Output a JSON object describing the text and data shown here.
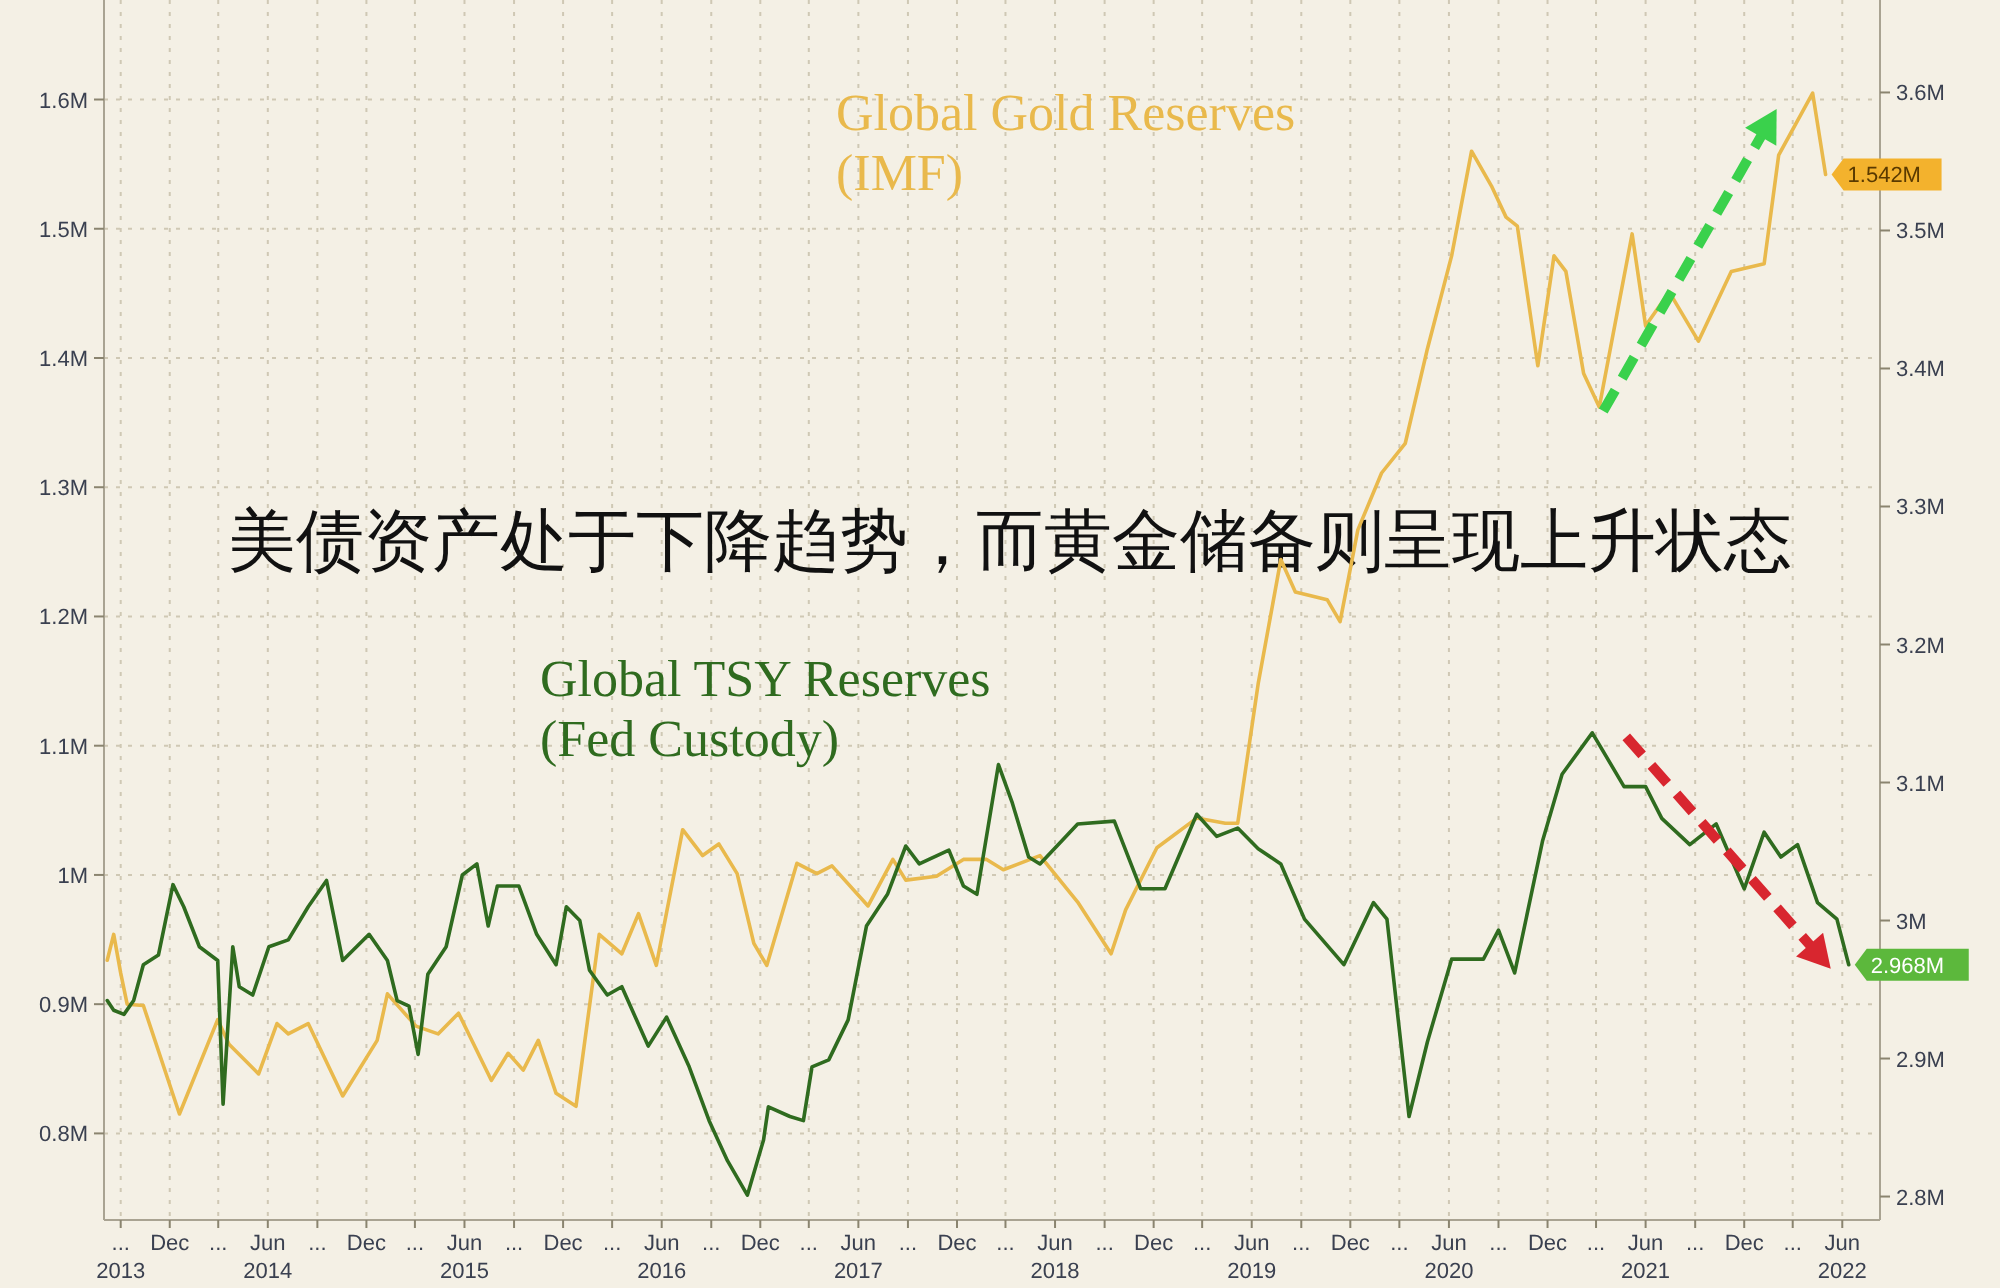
{
  "chart_data": {
    "type": "line",
    "title": "美债资产处于下降趋势，而黄金储备则呈现上升状态",
    "grid": true,
    "xlim": [
      "2013-08-01",
      "2022-08-10"
    ],
    "xticks": [
      {
        "value": "2013-09-01",
        "label": "...\n2013"
      },
      {
        "value": "2013-12-01",
        "label": "Dec"
      },
      {
        "value": "2014-03-01",
        "label": "..."
      },
      {
        "value": "2014-06-01",
        "label": "Jun\n2014"
      },
      {
        "value": "2014-09-01",
        "label": "..."
      },
      {
        "value": "2014-12-01",
        "label": "Dec"
      },
      {
        "value": "2015-03-01",
        "label": "..."
      },
      {
        "value": "2015-06-01",
        "label": "Jun\n2015"
      },
      {
        "value": "2015-09-01",
        "label": "..."
      },
      {
        "value": "2015-12-01",
        "label": "Dec"
      },
      {
        "value": "2016-03-01",
        "label": "..."
      },
      {
        "value": "2016-06-01",
        "label": "Jun\n2016"
      },
      {
        "value": "2016-09-01",
        "label": "..."
      },
      {
        "value": "2016-12-01",
        "label": "Dec"
      },
      {
        "value": "2017-03-01",
        "label": "..."
      },
      {
        "value": "2017-06-01",
        "label": "Jun\n2017"
      },
      {
        "value": "2017-09-01",
        "label": "..."
      },
      {
        "value": "2017-12-01",
        "label": "Dec"
      },
      {
        "value": "2018-03-01",
        "label": "..."
      },
      {
        "value": "2018-06-01",
        "label": "Jun\n2018"
      },
      {
        "value": "2018-09-01",
        "label": "..."
      },
      {
        "value": "2018-12-01",
        "label": "Dec"
      },
      {
        "value": "2019-03-01",
        "label": "..."
      },
      {
        "value": "2019-06-01",
        "label": "Jun\n2019"
      },
      {
        "value": "2019-09-01",
        "label": "..."
      },
      {
        "value": "2019-12-01",
        "label": "Dec"
      },
      {
        "value": "2020-03-01",
        "label": "..."
      },
      {
        "value": "2020-06-01",
        "label": "Jun\n2020"
      },
      {
        "value": "2020-09-01",
        "label": "..."
      },
      {
        "value": "2020-12-01",
        "label": "Dec"
      },
      {
        "value": "2021-03-01",
        "label": "..."
      },
      {
        "value": "2021-06-01",
        "label": "Jun\n2021"
      },
      {
        "value": "2021-09-01",
        "label": "..."
      },
      {
        "value": "2021-12-01",
        "label": "Dec"
      },
      {
        "value": "2022-03-01",
        "label": "..."
      },
      {
        "value": "2022-06-01",
        "label": "Jun\n2022"
      }
    ],
    "ylim": [
      0.733,
      1.677
    ],
    "yticks": [
      {
        "value": 0.8,
        "label": "0.8M"
      },
      {
        "value": 0.9,
        "label": "0.9M"
      },
      {
        "value": 1.0,
        "label": "1M"
      },
      {
        "value": 1.1,
        "label": "1.1M"
      },
      {
        "value": 1.2,
        "label": "1.2M"
      },
      {
        "value": 1.3,
        "label": "1.3M"
      },
      {
        "value": 1.4,
        "label": "1.4M"
      },
      {
        "value": 1.5,
        "label": "1.5M"
      },
      {
        "value": 1.6,
        "label": "1.6M"
      }
    ],
    "y2lim": [
      2.783,
      3.667
    ],
    "y2ticks": [
      {
        "value": 2.8,
        "label": "2.8M"
      },
      {
        "value": 2.9,
        "label": "2.9M"
      },
      {
        "value": 3.0,
        "label": "3M"
      },
      {
        "value": 3.1,
        "label": "3.1M"
      },
      {
        "value": 3.2,
        "label": "3.2M"
      },
      {
        "value": 3.3,
        "label": "3.3M"
      },
      {
        "value": 3.4,
        "label": "3.4M"
      },
      {
        "value": 3.5,
        "label": "3.5M"
      },
      {
        "value": 3.6,
        "label": "3.6M"
      }
    ],
    "series": [
      {
        "name": "Global Gold Reserves\n(IMF)",
        "color": "#e9b94c",
        "x": [
          "2013-08-07",
          "2013-08-19",
          "2013-09-01",
          "2013-09-13",
          "2013-10-13",
          "2013-12-19",
          "2014-02-28",
          "2014-03-21",
          "2014-05-15",
          "2014-06-18",
          "2014-07-09",
          "2014-08-15",
          "2014-10-18",
          "2014-12-21",
          "2015-01-09",
          "2015-03-03",
          "2015-04-13",
          "2015-05-21",
          "2015-07-21",
          "2015-08-21",
          "2015-09-18",
          "2015-10-16",
          "2015-11-18",
          "2015-12-25",
          "2016-02-06",
          "2016-03-19",
          "2016-04-19",
          "2016-05-22",
          "2016-07-10",
          "2016-08-16",
          "2016-09-15",
          "2016-10-19",
          "2016-11-19",
          "2016-12-13",
          "2017-02-07",
          "2017-03-16",
          "2017-04-13",
          "2017-06-19",
          "2017-08-04",
          "2017-08-28",
          "2017-10-24",
          "2017-12-13",
          "2018-01-25",
          "2018-02-25",
          "2018-05-04",
          "2018-07-13",
          "2018-09-13",
          "2018-10-10",
          "2018-12-07",
          "2019-02-19",
          "2019-04-13",
          "2019-05-06",
          "2019-06-13",
          "2019-07-25",
          "2019-08-21",
          "2019-10-19",
          "2019-11-12",
          "2019-12-15",
          "2020-01-28",
          "2020-03-12",
          "2020-04-22",
          "2020-06-06",
          "2020-07-13",
          "2020-08-19",
          "2020-09-15",
          "2020-10-06",
          "2020-11-13",
          "2020-12-13",
          "2021-01-04",
          "2021-02-06",
          "2021-03-07",
          "2021-05-07",
          "2021-06-01",
          "2021-07-15",
          "2021-09-07",
          "2021-11-07",
          "2022-01-07",
          "2022-02-03",
          "2022-04-07",
          "2022-05-01"
        ],
        "values": [
          0.934,
          0.954,
          0.924,
          0.9,
          0.899,
          0.815,
          0.888,
          0.869,
          0.846,
          0.885,
          0.877,
          0.885,
          0.829,
          0.872,
          0.908,
          0.883,
          0.877,
          0.893,
          0.841,
          0.862,
          0.849,
          0.872,
          0.831,
          0.821,
          0.954,
          0.939,
          0.97,
          0.93,
          1.035,
          1.015,
          1.024,
          1.001,
          0.947,
          0.93,
          1.009,
          1.001,
          1.007,
          0.976,
          1.012,
          0.996,
          0.999,
          1.012,
          1.012,
          1.004,
          1.015,
          0.979,
          0.939,
          0.973,
          1.021,
          1.044,
          1.04,
          1.04,
          1.148,
          1.244,
          1.219,
          1.213,
          1.196,
          1.267,
          1.311,
          1.334,
          1.407,
          1.479,
          1.56,
          1.533,
          1.509,
          1.502,
          1.394,
          1.479,
          1.467,
          1.388,
          1.362,
          1.496,
          1.425,
          1.451,
          1.413,
          1.467,
          1.473,
          1.557,
          1.605,
          1.542
        ],
        "value_labels": [
          null,
          null,
          null,
          null,
          null,
          null,
          null,
          null,
          null,
          null,
          null,
          null,
          null,
          null,
          null,
          null,
          null,
          null,
          null,
          null,
          null,
          null,
          null,
          null,
          null,
          null,
          null,
          null,
          null,
          null,
          null,
          null,
          null,
          null,
          null,
          null,
          null,
          null,
          null,
          null,
          null,
          null,
          null,
          null,
          null,
          null,
          null,
          null,
          null,
          null,
          null,
          null,
          null,
          null,
          null,
          null,
          null,
          null,
          null,
          null,
          null,
          null,
          null,
          null,
          null,
          null,
          null,
          null,
          null,
          null,
          null,
          null,
          null,
          null,
          null,
          null,
          null,
          null,
          null,
          "1.542M"
        ]
      },
      {
        "name": "Global TSY Reserves\n(Fed Custody)",
        "color": "#2f6b1f",
        "axis": "y2",
        "x": [
          "2013-08-07",
          "2013-08-19",
          "2013-09-07",
          "2013-09-25",
          "2013-10-13",
          "2013-11-10",
          "2013-12-07",
          "2013-12-27",
          "2014-01-25",
          "2014-02-28",
          "2014-03-10",
          "2014-03-28",
          "2014-04-09",
          "2014-05-04",
          "2014-06-03",
          "2014-07-09",
          "2014-08-15",
          "2014-09-18",
          "2014-10-18",
          "2014-12-06",
          "2015-01-09",
          "2015-01-27",
          "2015-02-18",
          "2015-03-07",
          "2015-03-25",
          "2015-04-28",
          "2015-05-28",
          "2015-06-24",
          "2015-07-15",
          "2015-08-01",
          "2015-09-10",
          "2015-10-13",
          "2015-11-18",
          "2015-12-07",
          "2016-01-01",
          "2016-01-19",
          "2016-02-21",
          "2016-03-19",
          "2016-05-07",
          "2016-06-10",
          "2016-07-22",
          "2016-08-28",
          "2016-10-01",
          "2016-11-07",
          "2016-12-07",
          "2016-12-16",
          "2017-01-25",
          "2017-02-19",
          "2017-03-07",
          "2017-04-07",
          "2017-05-13",
          "2017-06-16",
          "2017-07-25",
          "2017-08-28",
          "2017-09-22",
          "2017-11-16",
          "2017-12-13",
          "2018-01-07",
          "2018-02-16",
          "2018-03-13",
          "2018-04-13",
          "2018-05-04",
          "2018-07-13",
          "2018-09-19",
          "2018-11-07",
          "2018-12-22",
          "2019-02-19",
          "2019-03-28",
          "2019-05-06",
          "2019-06-13",
          "2019-07-25",
          "2019-09-07",
          "2019-11-19",
          "2020-01-13",
          "2020-02-07",
          "2020-03-19",
          "2020-04-22",
          "2020-06-06",
          "2020-08-04",
          "2020-09-01",
          "2020-10-01",
          "2020-11-22",
          "2020-12-28",
          "2021-02-22",
          "2021-04-22",
          "2021-06-01",
          "2021-07-01",
          "2021-08-22",
          "2021-10-10",
          "2021-12-01",
          "2022-01-07",
          "2022-02-07",
          "2022-03-10",
          "2022-04-16",
          "2022-05-22",
          "2022-06-13"
        ],
        "values": [
          2.942,
          2.935,
          2.932,
          2.942,
          2.968,
          2.975,
          3.026,
          3.01,
          2.981,
          2.971,
          2.867,
          2.981,
          2.952,
          2.946,
          2.981,
          2.986,
          3.01,
          3.029,
          2.971,
          2.99,
          2.971,
          2.942,
          2.938,
          2.903,
          2.961,
          2.981,
          3.033,
          3.041,
          2.996,
          3.025,
          3.025,
          2.99,
          2.968,
          3.01,
          3.0,
          2.964,
          2.946,
          2.952,
          2.909,
          2.93,
          2.894,
          2.855,
          2.826,
          2.801,
          2.841,
          2.865,
          2.858,
          2.855,
          2.894,
          2.899,
          2.928,
          2.996,
          3.019,
          3.054,
          3.041,
          3.051,
          3.025,
          3.019,
          3.113,
          3.086,
          3.046,
          3.041,
          3.07,
          3.072,
          3.023,
          3.023,
          3.077,
          3.061,
          3.067,
          3.052,
          3.041,
          3.001,
          2.968,
          3.013,
          3.001,
          2.858,
          2.912,
          2.972,
          2.972,
          2.993,
          2.962,
          3.058,
          3.106,
          3.136,
          3.097,
          3.097,
          3.074,
          3.055,
          3.07,
          3.023,
          3.064,
          3.046,
          3.055,
          3.013,
          3.001,
          2.968
        ],
        "value_labels": [
          null,
          null,
          null,
          null,
          null,
          null,
          null,
          null,
          null,
          null,
          null,
          null,
          null,
          null,
          null,
          null,
          null,
          null,
          null,
          null,
          null,
          null,
          null,
          null,
          null,
          null,
          null,
          null,
          null,
          null,
          null,
          null,
          null,
          null,
          null,
          null,
          null,
          null,
          null,
          null,
          null,
          null,
          null,
          null,
          null,
          null,
          null,
          null,
          null,
          null,
          null,
          null,
          null,
          null,
          null,
          null,
          null,
          null,
          null,
          null,
          null,
          null,
          null,
          null,
          null,
          null,
          null,
          null,
          null,
          null,
          null,
          null,
          null,
          null,
          null,
          null,
          null,
          null,
          null,
          null,
          null,
          null,
          null,
          null,
          null,
          null,
          null,
          null,
          null,
          null,
          null,
          null,
          null,
          null,
          null,
          "2.968M"
        ]
      }
    ]
  }
}
